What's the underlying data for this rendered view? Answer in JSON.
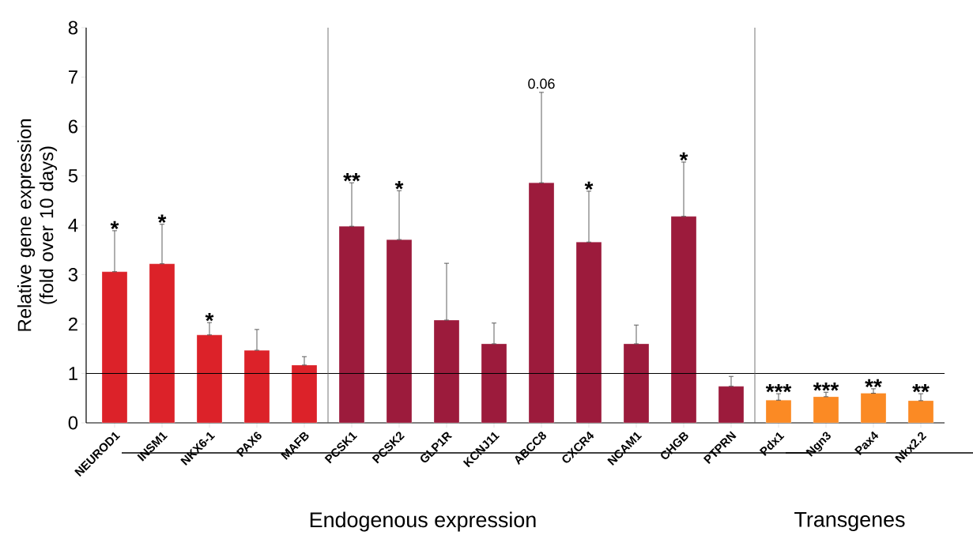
{
  "chart_data": {
    "type": "bar",
    "ylabel": "Relative gene expression (fold over 10 days)",
    "categories": [
      "NEUROD1",
      "INSM1",
      "NKX6-1",
      "PAX6",
      "MAFB",
      "PCSK1",
      "PCSK2",
      "GLP1R",
      "KCNJ11",
      "ABCC8",
      "CXCR4",
      "NCAM1",
      "CHGB",
      "PTPRN",
      "Pdx1",
      "Ngn3",
      "Pax4",
      "Nkx2.2"
    ],
    "values": [
      3.06,
      3.22,
      1.78,
      1.47,
      1.17,
      3.98,
      3.71,
      2.08,
      1.6,
      4.86,
      3.66,
      1.6,
      4.18,
      0.74,
      0.46,
      0.53,
      0.6,
      0.45
    ],
    "errors": [
      [
        3.06,
        3.89
      ],
      [
        3.22,
        4.02
      ],
      [
        1.78,
        2.03
      ],
      [
        1.47,
        1.89
      ],
      [
        1.17,
        1.34
      ],
      [
        3.98,
        4.86
      ],
      [
        3.71,
        4.7
      ],
      [
        2.08,
        3.23
      ],
      [
        1.6,
        2.02
      ],
      [
        4.86,
        6.69
      ],
      [
        3.66,
        4.69
      ],
      [
        1.6,
        1.98
      ],
      [
        4.18,
        5.28
      ],
      [
        0.74,
        0.94
      ],
      [
        0.46,
        0.59
      ],
      [
        0.53,
        0.62
      ],
      [
        0.6,
        0.69
      ],
      [
        0.45,
        0.59
      ]
    ],
    "colors": [
      "#dc2229",
      "#dc2229",
      "#dc2229",
      "#dc2229",
      "#dc2229",
      "#9c1b3c",
      "#9c1b3c",
      "#9c1b3c",
      "#9c1b3c",
      "#9c1b3c",
      "#9c1b3c",
      "#9c1b3c",
      "#9c1b3c",
      "#9c1b3c",
      "#fb8a24",
      "#fb8a24",
      "#fb8a24",
      "#fb8a24"
    ],
    "ylim": [
      0,
      8
    ],
    "yticks": [
      0,
      1,
      2,
      3,
      4,
      5,
      6,
      7,
      8
    ],
    "ref_lines": [
      {
        "axis": "y",
        "value": 1,
        "color": "#000000"
      }
    ],
    "annotations": [
      {
        "text": "*",
        "x": "NEUROD1",
        "y": 3.89
      },
      {
        "text": "*",
        "x": "INSM1",
        "y": 4.02
      },
      {
        "text": "*",
        "x": "NKX6-1",
        "y": 2.03
      },
      {
        "text": "**",
        "x": "PCSK1",
        "y": 4.86
      },
      {
        "text": "*",
        "x": "PCSK2",
        "y": 4.7
      },
      {
        "text": "0.06",
        "x": "ABCC8",
        "y": 6.69
      },
      {
        "text": "*",
        "x": "CXCR4",
        "y": 4.69
      },
      {
        "text": "*",
        "x": "CHGB",
        "y": 5.28
      },
      {
        "text": "***",
        "x": "Pdx1",
        "y": 0.59
      },
      {
        "text": "***",
        "x": "Ngn3",
        "y": 0.62
      },
      {
        "text": "**",
        "x": "Pax4",
        "y": 0.69
      },
      {
        "text": "**",
        "x": "Nkx2.2",
        "y": 0.59
      },
      "Endogenous expression",
      "Transgenes"
    ],
    "grid": false
  }
}
